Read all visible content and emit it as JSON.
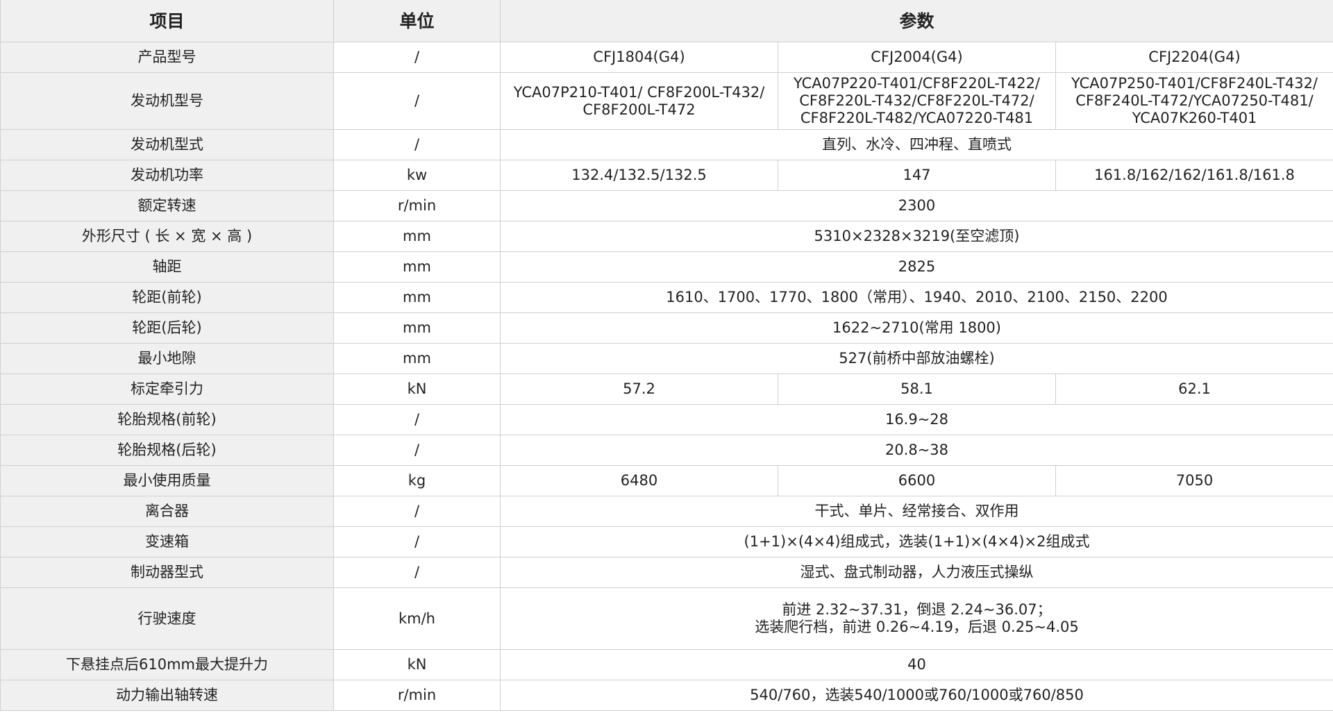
{
  "headers": [
    "项目",
    "单位",
    "参数"
  ],
  "rows": [
    {
      "label": "产品型号",
      "unit": "/",
      "values": [
        "CFJ1804(G4)",
        "CFJ2004(G4)",
        "CFJ2204(G4)"
      ]
    },
    {
      "label": "发动机型号",
      "unit": "/",
      "values": [
        "YCA07P210-T401/ CF8F200L-T432/ CF8F200L-T472",
        "YCA07P220-T401/CF8F220L-T422/ CF8F220L-T432/CF8F220L-T472/ CF8F220L-T482/YCA07220-T481",
        "YCA07P250-T401/CF8F240L-T432/ CF8F240L-T472/YCA07250-T481/ YCA07K260-T401"
      ]
    },
    {
      "label": "发动机型式",
      "unit": "/",
      "value": "直列、水冷、四冲程、直喷式"
    },
    {
      "label": "发动机功率",
      "unit": "kw",
      "values": [
        "132.4/132.5/132.5",
        "147",
        "161.8/162/162/161.8/161.8"
      ]
    },
    {
      "label": "额定转速",
      "unit": "r/min",
      "value": "2300"
    },
    {
      "label": "外形尺寸 ( 长 × 宽 × 高 )",
      "unit": "mm",
      "value": "5310×2328×3219(至空滤顶)"
    },
    {
      "label": "轴距",
      "unit": "mm",
      "value": "2825"
    },
    {
      "label": "轮距(前轮)",
      "unit": "mm",
      "value": "1610、1700、1770、1800（常用）、1940、2010、2100、2150、2200"
    },
    {
      "label": "轮距(后轮)",
      "unit": "mm",
      "value": "1622~2710(常用 1800)"
    },
    {
      "label": "最小地隙",
      "unit": "mm",
      "value": "527(前桥中部放油螺栓)"
    },
    {
      "label": "标定牵引力",
      "unit": "kN",
      "values": [
        "57.2",
        "58.1",
        "62.1"
      ]
    },
    {
      "label": "轮胎规格(前轮)",
      "unit": "/",
      "value": "16.9~28"
    },
    {
      "label": "轮胎规格(后轮)",
      "unit": "/",
      "value": "20.8~38"
    },
    {
      "label": "最小使用质量",
      "unit": "kg",
      "values": [
        "6480",
        "6600",
        "7050"
      ]
    },
    {
      "label": "离合器",
      "unit": "/",
      "value": "干式、单片、经常接合、双作用"
    },
    {
      "label": "变速箱",
      "unit": "/",
      "value": "(1+1)×(4×4)组成式，选装(1+1)×(4×4)×2组成式"
    },
    {
      "label": "制动器型式",
      "unit": "/",
      "value": "湿式、盘式制动器，人力液压式操纵"
    },
    {
      "label": "行驶速度",
      "unit": "km/h",
      "value": "前进 2.32~37.31，倒退 2.24~36.07；",
      "value2": "选装爬行档，前进 0.26~4.19，后退 0.25~4.05"
    },
    {
      "label": "下悬挂点后610mm最大提升力",
      "unit": "kN",
      "value": "40"
    },
    {
      "label": "动力输出轴转速",
      "unit": "r/min",
      "value": "540/760，选装540/1000或760/1000或760/850"
    }
  ]
}
